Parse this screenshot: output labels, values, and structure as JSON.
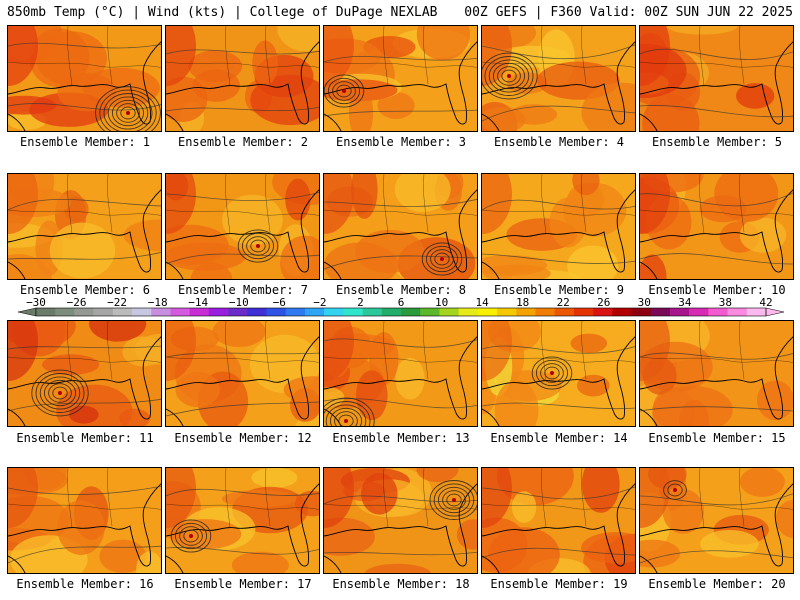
{
  "header": {
    "left": "850mb Temp (°C) | Wind (kts) | College of DuPage NEXLAB",
    "right": "00Z GEFS | F360 Valid: 00Z SUN JUN 22 2025"
  },
  "colorbar": {
    "ticks": [
      "−30",
      "−26",
      "−22",
      "−18",
      "−14",
      "−10",
      "−6",
      "−2",
      "2",
      "6",
      "10",
      "14",
      "18",
      "22",
      "26",
      "30",
      "34",
      "38",
      "42"
    ],
    "colors": [
      "#6a7b6a",
      "#7e8e7e",
      "#939993",
      "#a6a6a6",
      "#bbbbbb",
      "#c7c7e2",
      "#c88ee0",
      "#d45ae0",
      "#c92dd6",
      "#9a1ee0",
      "#6a2bc9",
      "#3f2fd6",
      "#2e52e6",
      "#2d79f0",
      "#2ea4f4",
      "#33d3f0",
      "#2de6cc",
      "#2cc89a",
      "#23ad6a",
      "#2a9a3a",
      "#5cb82a",
      "#a4d41e",
      "#e6ea1a",
      "#f8f000",
      "#f6c800",
      "#f4a200",
      "#f07c00",
      "#ec5600",
      "#e63200",
      "#d91212",
      "#b20000",
      "#8c0010",
      "#7a0a55",
      "#a8148c",
      "#d62cb4",
      "#f25ad0",
      "#f88ae0",
      "#fbb8ec"
    ]
  },
  "panels": [
    {
      "label": "Ensemble Member: 1",
      "base": "#f29a18",
      "warm": "#ee6a12",
      "hot": "#e23a10",
      "cool": "#f8bf2a",
      "low": [
        120,
        87
      ],
      "rings": 7
    },
    {
      "label": "Ensemble Member: 2",
      "base": "#f09418",
      "warm": "#ec6412",
      "hot": "#e2400e",
      "cool": "#f6b426",
      "low": null,
      "rings": 0
    },
    {
      "label": "Ensemble Member: 3",
      "base": "#f4a01a",
      "warm": "#ef7414",
      "hot": "#e8500f",
      "cool": "#f9c22c",
      "low": [
        20,
        65
      ],
      "rings": 4
    },
    {
      "label": "Ensemble Member: 4",
      "base": "#f4a21c",
      "warm": "#ef7814",
      "hot": "#e85a10",
      "cool": "#f9c62e",
      "low": [
        27,
        50
      ],
      "rings": 6
    },
    {
      "label": "Ensemble Member: 5",
      "base": "#ef8816",
      "warm": "#ea5c12",
      "hot": "#e23a0e",
      "cool": "#f4ac24",
      "low": null,
      "rings": 0
    },
    {
      "label": "Ensemble Member: 6",
      "base": "#f4a01a",
      "warm": "#f08016",
      "hot": "#ea6410",
      "cool": "#f8be2a",
      "low": null,
      "rings": 0
    },
    {
      "label": "Ensemble Member: 7",
      "base": "#f29616",
      "warm": "#ed6c12",
      "hot": "#e2460e",
      "cool": "#f7b628",
      "low": [
        92,
        72
      ],
      "rings": 4
    },
    {
      "label": "Ensemble Member: 8",
      "base": "#f49e1a",
      "warm": "#ee7214",
      "hot": "#e4500f",
      "cool": "#f8bc2a",
      "low": [
        118,
        85
      ],
      "rings": 4
    },
    {
      "label": "Ensemble Member: 9",
      "base": "#f5a81c",
      "warm": "#f08416",
      "hot": "#ea6010",
      "cool": "#f9c62e",
      "low": null,
      "rings": 0
    },
    {
      "label": "Ensemble Member: 10",
      "base": "#f29618",
      "warm": "#ed6a12",
      "hot": "#e2400e",
      "cool": "#f7b628",
      "low": null,
      "rings": 0
    },
    {
      "label": "Ensemble Member: 11",
      "base": "#f08c16",
      "warm": "#ea5a12",
      "hot": "#d4300e",
      "cool": "#f6ae24",
      "low": [
        52,
        72
      ],
      "rings": 6
    },
    {
      "label": "Ensemble Member: 12",
      "base": "#f4a01a",
      "warm": "#ef7614",
      "hot": "#e85a10",
      "cool": "#f8bc2a",
      "low": null,
      "rings": 0
    },
    {
      "label": "Ensemble Member: 13",
      "base": "#f29a18",
      "warm": "#ed6e12",
      "hot": "#e44c0f",
      "cool": "#f8ba2a",
      "low": [
        22,
        100
      ],
      "rings": 6
    },
    {
      "label": "Ensemble Member: 14",
      "base": "#f6ac1e",
      "warm": "#f18616",
      "hot": "#ea6610",
      "cool": "#f2de3a",
      "low": [
        70,
        52
      ],
      "rings": 4
    },
    {
      "label": "Ensemble Member: 15",
      "base": "#f29418",
      "warm": "#ee7014",
      "hot": "#e65a10",
      "cool": "#f8b628",
      "low": null,
      "rings": 0
    },
    {
      "label": "Ensemble Member: 16",
      "base": "#f49e1a",
      "warm": "#ee7414",
      "hot": "#e65410",
      "cool": "#f9c02c",
      "low": null,
      "rings": 0
    },
    {
      "label": "Ensemble Member: 17",
      "base": "#f4a01a",
      "warm": "#ef7614",
      "hot": "#e65610",
      "cool": "#f9c42e",
      "low": [
        25,
        68
      ],
      "rings": 4
    },
    {
      "label": "Ensemble Member: 18",
      "base": "#f09418",
      "warm": "#ea6414",
      "hot": "#e0400e",
      "cool": "#f8b628",
      "low": [
        130,
        32
      ],
      "rings": 5
    },
    {
      "label": "Ensemble Member: 19",
      "base": "#f29818",
      "warm": "#ec6212",
      "hot": "#e0420e",
      "cool": "#f9c02c",
      "low": null,
      "rings": 0
    },
    {
      "label": "Ensemble Member: 20",
      "base": "#f4a01a",
      "warm": "#ef7614",
      "hot": "#e65810",
      "cool": "#f9c22c",
      "low": [
        35,
        22
      ],
      "rings": 2
    }
  ]
}
